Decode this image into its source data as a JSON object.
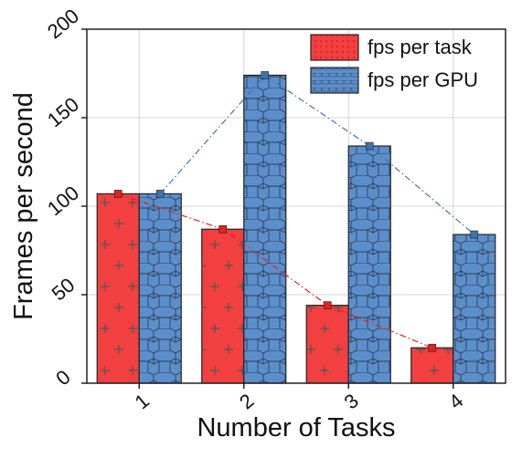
{
  "chart_data": {
    "type": "bar",
    "categories": [
      "1",
      "2",
      "3",
      "4"
    ],
    "series": [
      {
        "name": "fps per task",
        "values": [
          107,
          87,
          44,
          20
        ],
        "color": "#f23f3f",
        "pattern": "plus"
      },
      {
        "name": "fps per GPU",
        "values": [
          107,
          174,
          134,
          84
        ],
        "color": "#5b8fcb",
        "pattern": "hexagon"
      }
    ],
    "overlay_lines": [
      {
        "series": "fps per task",
        "style": "dash-dot",
        "color": "#e81f1f"
      },
      {
        "series": "fps per GPU",
        "style": "dash-dot",
        "color": "#3d73b0"
      }
    ],
    "xlabel": "Number of Tasks",
    "ylabel": "Frames per second",
    "ylim": [
      0,
      200
    ],
    "yticks": [
      0,
      50,
      100,
      150,
      200
    ],
    "grid": true,
    "legend": "top-right"
  }
}
